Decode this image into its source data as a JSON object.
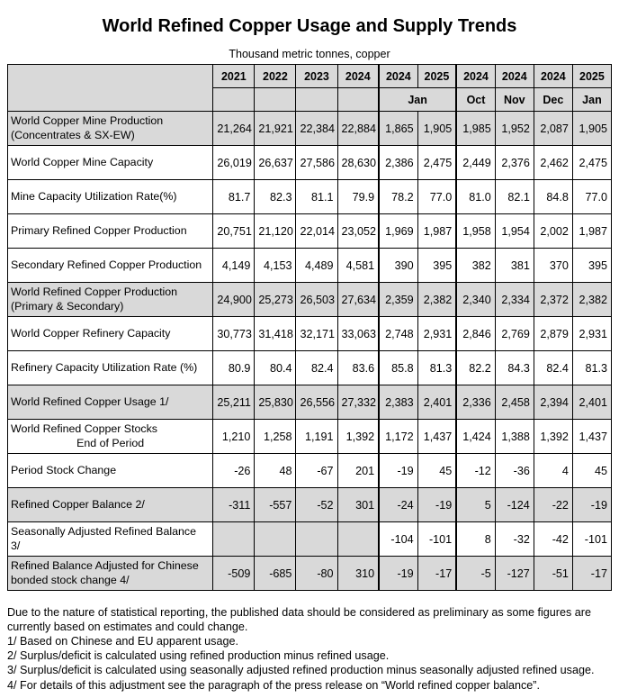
{
  "title": "World Refined Copper Usage and Supply Trends",
  "subtitle": "Thousand metric tonnes, copper",
  "table": {
    "header": {
      "years": [
        "2021",
        "2022",
        "2023",
        "2024",
        "2024",
        "2025",
        "2024",
        "2024",
        "2024",
        "2025"
      ],
      "months": [
        {
          "label": "Jan",
          "span": 2
        },
        {
          "label": "Oct",
          "span": 1
        },
        {
          "label": "Nov",
          "span": 1
        },
        {
          "label": "Dec",
          "span": 1
        },
        {
          "label": "Jan",
          "span": 1
        }
      ]
    },
    "rows": [
      {
        "label": "World Copper Mine Production",
        "label2": "(Concentrates & SX-EW)",
        "shaded": true,
        "values": [
          "21,264",
          "21,921",
          "22,384",
          "22,884",
          "1,865",
          "1,905",
          "1,985",
          "1,952",
          "2,087",
          "1,905"
        ]
      },
      {
        "label": "World Copper Mine Capacity",
        "shaded": false,
        "values": [
          "26,019",
          "26,637",
          "27,586",
          "28,630",
          "2,386",
          "2,475",
          "2,449",
          "2,376",
          "2,462",
          "2,475"
        ]
      },
      {
        "label": "Mine Capacity Utilization Rate(%)",
        "shaded": false,
        "values": [
          "81.7",
          "82.3",
          "81.1",
          "79.9",
          "78.2",
          "77.0",
          "81.0",
          "82.1",
          "84.8",
          "77.0"
        ]
      },
      {
        "label": "Primary Refined Copper Production",
        "shaded": false,
        "values": [
          "20,751",
          "21,120",
          "22,014",
          "23,052",
          "1,969",
          "1,987",
          "1,958",
          "1,954",
          "2,002",
          "1,987"
        ]
      },
      {
        "label": "Secondary Refined Copper Production",
        "shaded": false,
        "values": [
          "4,149",
          "4,153",
          "4,489",
          "4,581",
          "390",
          "395",
          "382",
          "381",
          "370",
          "395"
        ]
      },
      {
        "label": "World Refined Copper Production",
        "label2": "(Primary & Secondary)",
        "shaded": true,
        "values": [
          "24,900",
          "25,273",
          "26,503",
          "27,634",
          "2,359",
          "2,382",
          "2,340",
          "2,334",
          "2,372",
          "2,382"
        ]
      },
      {
        "label": "World Copper Refinery Capacity",
        "shaded": false,
        "values": [
          "30,773",
          "31,418",
          "32,171",
          "33,063",
          "2,748",
          "2,931",
          "2,846",
          "2,769",
          "2,879",
          "2,931"
        ]
      },
      {
        "label": "Refinery Capacity Utilization Rate (%)",
        "shaded": false,
        "values": [
          "80.9",
          "80.4",
          "82.4",
          "83.6",
          "85.8",
          "81.3",
          "82.2",
          "84.3",
          "82.4",
          "81.3"
        ]
      },
      {
        "label": "World Refined Copper Usage 1/",
        "shaded": true,
        "values": [
          "25,211",
          "25,830",
          "26,556",
          "27,332",
          "2,383",
          "2,401",
          "2,336",
          "2,458",
          "2,394",
          "2,401"
        ]
      },
      {
        "label": "World Refined Copper Stocks",
        "label2": "End of Period",
        "label2_center": true,
        "shaded": false,
        "values": [
          "1,210",
          "1,258",
          "1,191",
          "1,392",
          "1,172",
          "1,437",
          "1,424",
          "1,388",
          "1,392",
          "1,437"
        ]
      },
      {
        "label": "Period Stock Change",
        "shaded": false,
        "values": [
          "-26",
          "48",
          "-67",
          "201",
          "-19",
          "45",
          "-12",
          "-36",
          "4",
          "45"
        ]
      },
      {
        "label": "Refined Copper Balance 2/",
        "shaded": true,
        "values": [
          "-311",
          "-557",
          "-52",
          "301",
          "-24",
          "-19",
          "5",
          "-124",
          "-22",
          "-19"
        ]
      },
      {
        "label": "Seasonally Adjusted Refined Balance",
        "label2": "3/",
        "shaded": false,
        "empty_shaded": true,
        "values": [
          "",
          "",
          "",
          "",
          "-104",
          "-101",
          "8",
          "-32",
          "-42",
          "-101"
        ]
      },
      {
        "label": "Refined Balance Adjusted for Chinese",
        "label2": "bonded stock change 4/",
        "shaded": true,
        "values": [
          "-509",
          "-685",
          "-80",
          "310",
          "-19",
          "-17",
          "-5",
          "-127",
          "-51",
          "-17"
        ]
      }
    ]
  },
  "footnotes": [
    "Due to the nature of statistical reporting, the published data should be considered as preliminary as some figures are currently based on estimates and could change.",
    "1/ Based on Chinese and EU apparent usage.",
    "2/ Surplus/deficit is calculated using refined production minus refined usage.",
    "3/ Surplus/deficit is calculated using seasonally adjusted refined production minus seasonally adjusted refined usage.",
    "4/ For details of this adjustment see the paragraph of the press release on “World refined copper balance”."
  ]
}
